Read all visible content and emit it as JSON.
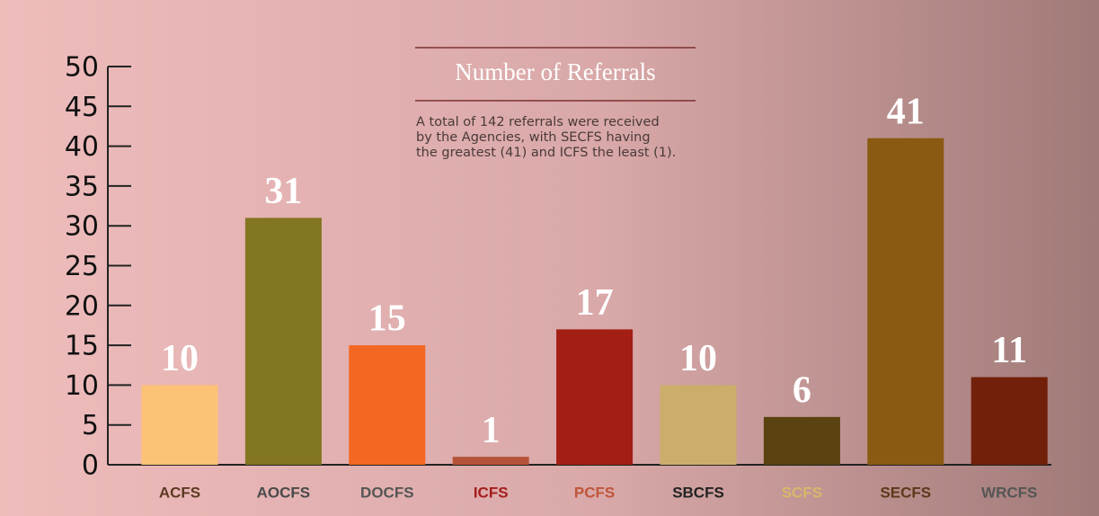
{
  "chart_data": {
    "type": "bar",
    "title": "Number of Referrals",
    "subtitle": [
      "A total of 142 referrals were received",
      "by the Agencies, with SECFS having",
      "the greatest (41) and ICFS the least (1)."
    ],
    "categories": [
      "ACFS",
      "AOCFS",
      "DOCFS",
      "ICFS",
      "PCFS",
      "SBCFS",
      "SCFS",
      "SECFS",
      "WRCFS"
    ],
    "values": [
      10,
      31,
      15,
      1,
      17,
      10,
      6,
      41,
      11
    ],
    "colors": [
      "#fcc276",
      "#837622",
      "#f26722",
      "#b5533a",
      "#a31f14",
      "#cbae6c",
      "#5a4310",
      "#8a5a13",
      "#72200a"
    ],
    "category_colors": [
      "#5b3a22",
      "#4a4a4a",
      "#555555",
      "#a51c1c",
      "#c0563a",
      "#222222",
      "#d6b86a",
      "#5a3a1a",
      "#555555"
    ],
    "ylim": [
      0,
      50
    ],
    "yticks": [
      0,
      5,
      10,
      15,
      20,
      25,
      30,
      35,
      40,
      45,
      50
    ]
  }
}
